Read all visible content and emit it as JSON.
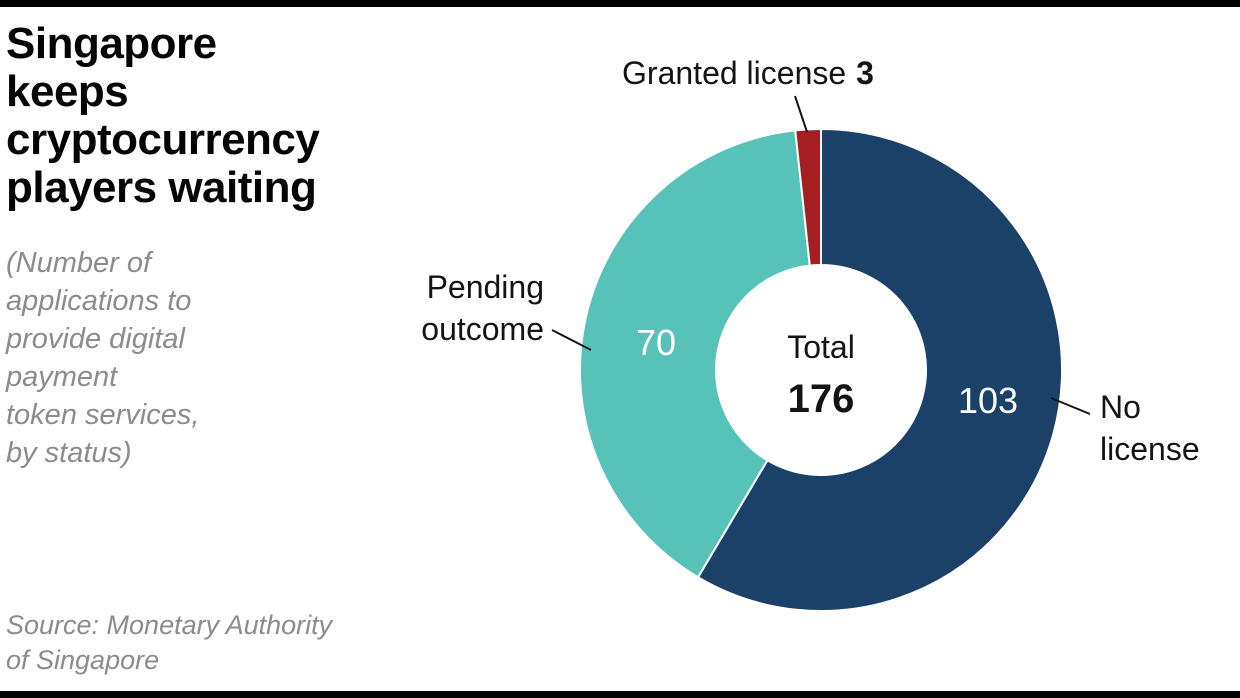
{
  "header": {
    "title": "Singapore keeps cryptocurrency players waiting",
    "title_lines": [
      "Singapore keeps",
      "cryptocurrency",
      "players waiting"
    ],
    "subtitle": "(Number of applications to provide digital payment token services, by status)",
    "subtitle_lines": [
      "(Number of",
      "applications to",
      "provide digital",
      "payment",
      "token services,",
      "by status)"
    ]
  },
  "footer": {
    "source": "Source: Monetary Authority of Singapore",
    "source_lines": [
      "Source: Monetary Authority",
      "of Singapore"
    ]
  },
  "chart_data": {
    "type": "pie",
    "donut": true,
    "title": "Singapore keeps cryptocurrency players waiting",
    "subtitle": "(Number of applications to provide digital payment token services, by status)",
    "source": "Source: Monetary Authority of Singapore",
    "total": 176,
    "center": {
      "label": "Total",
      "value": "176"
    },
    "start_angle_deg": 0,
    "direction": "clockwise",
    "legend_position": "callouts",
    "segments": [
      {
        "label": "No license",
        "value": 103,
        "color": "#1b4169",
        "value_label": "103",
        "value_label_color": "#ffffff",
        "value_label_inside": true
      },
      {
        "label": "Pending outcome",
        "value": 70,
        "color": "#57c2b8",
        "value_label": "70",
        "value_label_color": "#ffffff",
        "value_label_inside": true
      },
      {
        "label": "Granted license",
        "value": 3,
        "color": "#a51f22",
        "value_label": "3",
        "value_label_color": "#141414",
        "value_label_inside": false
      }
    ]
  },
  "chart_labels": {
    "granted_label": "Granted license",
    "granted_value": "3",
    "pending_line1": "Pending",
    "pending_line2": "outcome",
    "pending_value": "70",
    "no_license_value": "103",
    "no_license_line1": "No",
    "no_license_line2": "license",
    "center_label": "Total",
    "center_value": "176"
  },
  "colors": {
    "no_license": "#1b4169",
    "pending_outcome": "#57c2b8",
    "granted_license": "#a51f22",
    "muted_text": "#8c8c8c",
    "rule": "#000000"
  }
}
